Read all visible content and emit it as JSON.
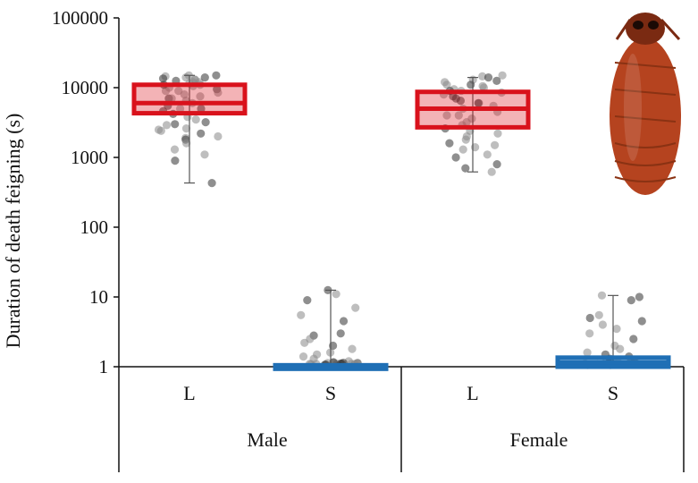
{
  "chart_data": {
    "type": "box",
    "ylabel": "Duration of death feigning (s)",
    "yscale": "log",
    "ylim": [
      1,
      100000
    ],
    "yticks": [
      "1",
      "10",
      "100",
      "1000",
      "10000",
      "100000"
    ],
    "groups": [
      "Male",
      "Female"
    ],
    "strains": [
      "L",
      "S"
    ],
    "boxes": [
      {
        "group": "Male",
        "strain": "L",
        "color": "#d9121c",
        "q1": 4300,
        "median": 6000,
        "q3": 11000,
        "whisker_low": 430,
        "whisker_high": 15000,
        "points": [
          15000,
          14500,
          14000,
          13500,
          13000,
          12500,
          12000,
          11500,
          11000,
          10500,
          10000,
          9500,
          9000,
          8500,
          8000,
          7500,
          7000,
          6500,
          6000,
          5500,
          5000,
          4600,
          4200,
          3800,
          3500,
          3200,
          2900,
          2600,
          2400,
          2200,
          2000,
          1900,
          1800,
          1600,
          1300,
          1100,
          900,
          430,
          15000,
          14000,
          12000,
          9000,
          7000,
          5000,
          3000,
          2500,
          13000,
          11000
        ]
      },
      {
        "group": "Male",
        "strain": "S",
        "color": "#1f6fb5",
        "q1": 1,
        "median": 1,
        "q3": 1.05,
        "whisker_low": 1,
        "whisker_high": 12.5,
        "points": [
          12.5,
          11,
          9,
          7,
          5.5,
          4.5,
          3,
          2.8,
          2.5,
          2.2,
          2,
          1.8,
          1.6,
          1.5,
          1.4,
          1.3,
          1.2,
          1.1,
          1.05,
          1,
          1,
          1,
          1,
          1,
          1,
          1,
          1,
          1,
          1,
          1,
          1,
          1,
          1,
          1,
          1
        ]
      },
      {
        "group": "Female",
        "strain": "L",
        "color": "#d9121c",
        "q1": 2700,
        "median": 5000,
        "q3": 8700,
        "whisker_low": 620,
        "whisker_high": 14000,
        "points": [
          15000,
          14500,
          14000,
          13000,
          12500,
          12000,
          11000,
          10500,
          10000,
          9500,
          9000,
          8500,
          8000,
          7500,
          7000,
          6500,
          6000,
          5500,
          5000,
          4500,
          4000,
          3600,
          3200,
          2900,
          2600,
          2400,
          2200,
          2000,
          1800,
          1600,
          1500,
          1400,
          1300,
          1100,
          1000,
          800,
          700,
          620,
          11000,
          9000,
          6000,
          4000
        ]
      },
      {
        "group": "Female",
        "strain": "S",
        "color": "#1f6fb5",
        "q1": 1,
        "median": 1.15,
        "q3": 1.35,
        "whisker_low": 1,
        "whisker_high": 10.5,
        "points": [
          10.5,
          10,
          9,
          5.5,
          5,
          4.5,
          4,
          3.5,
          3,
          2.5,
          2,
          1.8,
          1.6,
          1.5,
          1.4,
          1.3,
          1.2,
          1.1,
          1,
          1,
          1,
          1,
          1,
          1,
          1,
          1,
          1,
          1,
          1,
          1,
          1
        ]
      }
    ]
  },
  "illustration": {
    "name": "beetle",
    "color": "#b5431f"
  }
}
